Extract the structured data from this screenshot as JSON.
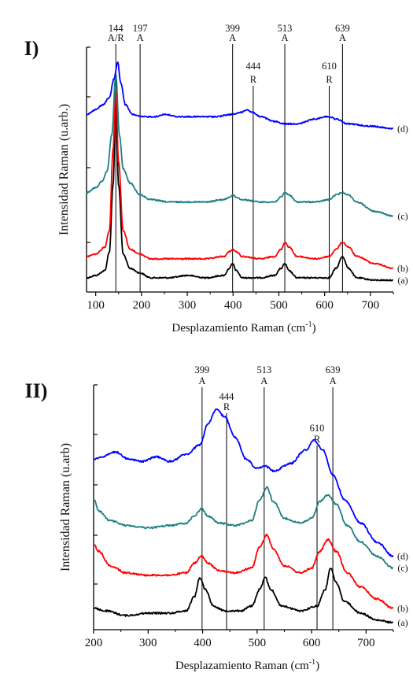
{
  "chart_data": [
    {
      "type": "line",
      "panel_label": "I)",
      "xlabel": "Desplazamiento Raman (cm",
      "xlabel_sup": "-1",
      "xlabel_tail": ")",
      "ylabel": "Intensidad Raman (u.arb.)",
      "xlim": [
        80,
        750
      ],
      "xticks": [
        100,
        200,
        300,
        400,
        500,
        600,
        700
      ],
      "ylim": [
        0,
        1
      ],
      "grid": false,
      "markers": [
        {
          "x": 144,
          "value": "144",
          "phase": "A/R"
        },
        {
          "x": 197,
          "value": "197",
          "phase": "A"
        },
        {
          "x": 399,
          "value": "399",
          "phase": "A"
        },
        {
          "x": 444,
          "value": "444",
          "phase": "R"
        },
        {
          "x": 513,
          "value": "513",
          "phase": "A"
        },
        {
          "x": 610,
          "value": "610",
          "phase": "R"
        },
        {
          "x": 639,
          "value": "639",
          "phase": "A"
        }
      ],
      "series": [
        {
          "name": "(a)",
          "color": "#000000",
          "x": [
            80,
            100,
            120,
            130,
            138,
            144,
            150,
            160,
            175,
            197,
            220,
            260,
            300,
            340,
            380,
            392,
            399,
            407,
            420,
            460,
            490,
            505,
            513,
            522,
            540,
            580,
            610,
            625,
            639,
            652,
            670,
            710,
            750
          ],
          "y": [
            0.06,
            0.07,
            0.09,
            0.17,
            0.45,
            0.8,
            0.45,
            0.16,
            0.1,
            0.08,
            0.06,
            0.06,
            0.07,
            0.06,
            0.07,
            0.1,
            0.12,
            0.09,
            0.06,
            0.06,
            0.07,
            0.1,
            0.12,
            0.09,
            0.06,
            0.06,
            0.06,
            0.1,
            0.15,
            0.1,
            0.06,
            0.05,
            0.05
          ]
        },
        {
          "name": "(b)",
          "color": "#ff0000",
          "x": [
            80,
            100,
            120,
            130,
            138,
            144,
            150,
            160,
            175,
            197,
            220,
            260,
            300,
            340,
            380,
            392,
            399,
            407,
            420,
            460,
            490,
            505,
            513,
            522,
            540,
            580,
            610,
            625,
            639,
            652,
            670,
            710,
            750
          ],
          "y": [
            0.15,
            0.16,
            0.19,
            0.26,
            0.6,
            0.85,
            0.55,
            0.26,
            0.18,
            0.16,
            0.14,
            0.14,
            0.14,
            0.14,
            0.15,
            0.17,
            0.18,
            0.17,
            0.15,
            0.14,
            0.15,
            0.18,
            0.21,
            0.19,
            0.15,
            0.14,
            0.15,
            0.18,
            0.21,
            0.19,
            0.15,
            0.12,
            0.1
          ]
        },
        {
          "name": "(c)",
          "color": "#1f8080",
          "x": [
            80,
            100,
            115,
            125,
            135,
            144,
            152,
            160,
            175,
            197,
            220,
            260,
            300,
            340,
            380,
            392,
            399,
            407,
            420,
            460,
            490,
            505,
            513,
            522,
            540,
            580,
            610,
            625,
            639,
            652,
            670,
            710,
            750
          ],
          "y": [
            0.42,
            0.44,
            0.47,
            0.51,
            0.66,
            0.92,
            0.66,
            0.52,
            0.46,
            0.41,
            0.39,
            0.38,
            0.38,
            0.38,
            0.39,
            0.4,
            0.41,
            0.4,
            0.39,
            0.38,
            0.38,
            0.4,
            0.42,
            0.41,
            0.38,
            0.38,
            0.39,
            0.41,
            0.42,
            0.41,
            0.38,
            0.34,
            0.32
          ]
        },
        {
          "name": "(d)",
          "color": "#0000ff",
          "x": [
            80,
            100,
            115,
            130,
            140,
            148,
            155,
            165,
            180,
            200,
            230,
            250,
            280,
            320,
            360,
            400,
            420,
            430,
            440,
            460,
            490,
            513,
            540,
            580,
            600,
            610,
            625,
            650,
            700,
            750
          ],
          "y": [
            0.75,
            0.77,
            0.79,
            0.82,
            0.9,
            0.97,
            0.88,
            0.79,
            0.75,
            0.74,
            0.74,
            0.75,
            0.74,
            0.74,
            0.74,
            0.75,
            0.76,
            0.77,
            0.76,
            0.74,
            0.72,
            0.71,
            0.71,
            0.73,
            0.74,
            0.74,
            0.73,
            0.71,
            0.7,
            0.69
          ]
        }
      ]
    },
    {
      "type": "line",
      "panel_label": "II)",
      "xlabel": "Desplazamiento Raman (cm",
      "xlabel_sup": "-1",
      "xlabel_tail": ")",
      "ylabel": "Intensidad Raman (u.arb)",
      "xlim": [
        200,
        750
      ],
      "xticks": [
        200,
        300,
        400,
        500,
        600,
        700
      ],
      "ylim": [
        0,
        1
      ],
      "grid": false,
      "markers": [
        {
          "x": 399,
          "value": "399",
          "phase": "A"
        },
        {
          "x": 444,
          "value": "444",
          "phase": "R"
        },
        {
          "x": 513,
          "value": "513",
          "phase": "A"
        },
        {
          "x": 610,
          "value": "610",
          "phase": "R"
        },
        {
          "x": 639,
          "value": "639",
          "phase": "A"
        }
      ],
      "series": [
        {
          "name": "(a)",
          "color": "#000000",
          "x": [
            200,
            220,
            260,
            300,
            340,
            370,
            385,
            395,
            405,
            420,
            440,
            470,
            490,
            505,
            515,
            525,
            545,
            580,
            610,
            625,
            635,
            645,
            660,
            690,
            720,
            750
          ],
          "y": [
            0.09,
            0.08,
            0.06,
            0.07,
            0.07,
            0.08,
            0.14,
            0.22,
            0.17,
            0.1,
            0.08,
            0.08,
            0.1,
            0.17,
            0.22,
            0.17,
            0.1,
            0.08,
            0.1,
            0.17,
            0.26,
            0.2,
            0.12,
            0.07,
            0.04,
            0.03
          ]
        },
        {
          "name": "(b)",
          "color": "#ff0000",
          "x": [
            200,
            210,
            230,
            260,
            300,
            340,
            370,
            385,
            398,
            410,
            430,
            460,
            490,
            505,
            518,
            530,
            550,
            580,
            600,
            615,
            630,
            645,
            665,
            690,
            720,
            750
          ],
          "y": [
            0.36,
            0.33,
            0.27,
            0.24,
            0.23,
            0.23,
            0.24,
            0.28,
            0.31,
            0.28,
            0.25,
            0.24,
            0.26,
            0.35,
            0.4,
            0.34,
            0.27,
            0.24,
            0.26,
            0.33,
            0.38,
            0.33,
            0.24,
            0.18,
            0.13,
            0.09
          ]
        },
        {
          "name": "(c)",
          "color": "#1f8080",
          "x": [
            200,
            210,
            230,
            260,
            300,
            340,
            370,
            385,
            398,
            410,
            430,
            460,
            490,
            505,
            518,
            530,
            550,
            580,
            600,
            615,
            630,
            645,
            665,
            690,
            720,
            750
          ],
          "y": [
            0.55,
            0.5,
            0.46,
            0.44,
            0.43,
            0.44,
            0.45,
            0.48,
            0.51,
            0.48,
            0.45,
            0.44,
            0.46,
            0.55,
            0.6,
            0.54,
            0.47,
            0.45,
            0.47,
            0.54,
            0.57,
            0.53,
            0.44,
            0.37,
            0.31,
            0.26
          ]
        },
        {
          "name": "(d)",
          "color": "#0000ff",
          "x": [
            200,
            215,
            240,
            265,
            290,
            315,
            340,
            370,
            395,
            410,
            425,
            440,
            460,
            480,
            500,
            515,
            530,
            560,
            590,
            605,
            620,
            640,
            660,
            690,
            720,
            750
          ],
          "y": [
            0.72,
            0.73,
            0.75,
            0.72,
            0.71,
            0.73,
            0.71,
            0.74,
            0.78,
            0.87,
            0.93,
            0.9,
            0.81,
            0.72,
            0.68,
            0.69,
            0.67,
            0.7,
            0.76,
            0.8,
            0.76,
            0.65,
            0.55,
            0.45,
            0.37,
            0.31
          ]
        }
      ]
    }
  ]
}
